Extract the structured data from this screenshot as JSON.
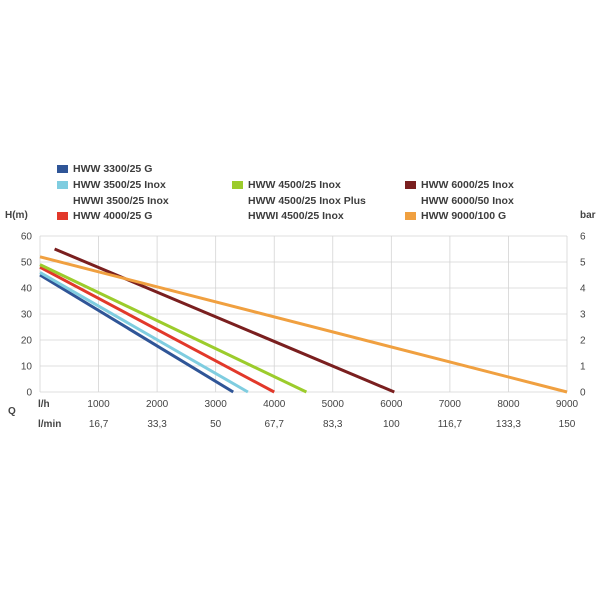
{
  "chart_data": {
    "type": "line",
    "y_left_label": "H(m)",
    "y_right_label": "bar",
    "q_label": "Q",
    "x_unit_label": "l/h",
    "x2_unit_label": "l/min",
    "x_ticks": [
      "1000",
      "2000",
      "3000",
      "4000",
      "5000",
      "6000",
      "7000",
      "8000",
      "9000"
    ],
    "x2_ticks": [
      "16,7",
      "33,3",
      "50",
      "67,7",
      "83,3",
      "100",
      "116,7",
      "133,3",
      "150"
    ],
    "y_left_ticks": [
      "0",
      "10",
      "20",
      "30",
      "40",
      "50",
      "60"
    ],
    "y_right_ticks": [
      "0",
      "1",
      "2",
      "3",
      "4",
      "5",
      "6"
    ],
    "xlim": [
      0,
      9000
    ],
    "ylim": [
      0,
      60
    ],
    "grid": true,
    "legend": [
      {
        "label": "HWW 3300/25 G",
        "color": "#2f5597"
      },
      {
        "label": "HWW 3500/25 Inox",
        "color": "#7fcde0"
      },
      {
        "label": "HWWI 3500/25 Inox",
        "color": ""
      },
      {
        "label": "HWW 4000/25 G",
        "color": "#e2382a"
      },
      {
        "label": "HWW 4500/25 Inox",
        "color": "#9ccc2c"
      },
      {
        "label": "HWW 4500/25 Inox Plus",
        "color": ""
      },
      {
        "label": "HWWI 4500/25 Inox",
        "color": ""
      },
      {
        "label": "HWW 6000/25 Inox",
        "color": "#7a1f1f"
      },
      {
        "label": "HWW 6000/50 Inox",
        "color": ""
      },
      {
        "label": "HWW 9000/100 G",
        "color": "#f0a040"
      }
    ],
    "series": [
      {
        "color": "#2f5597",
        "points": [
          [
            0,
            45
          ],
          [
            3300,
            0
          ]
        ]
      },
      {
        "color": "#7fcde0",
        "points": [
          [
            0,
            46
          ],
          [
            3550,
            0
          ]
        ]
      },
      {
        "color": "#e2382a",
        "points": [
          [
            0,
            48
          ],
          [
            4000,
            0
          ]
        ]
      },
      {
        "color": "#9ccc2c",
        "points": [
          [
            0,
            49
          ],
          [
            4550,
            0
          ]
        ]
      },
      {
        "color": "#7a1f1f",
        "points": [
          [
            250,
            55
          ],
          [
            6050,
            0
          ]
        ]
      },
      {
        "color": "#f0a040",
        "points": [
          [
            0,
            52
          ],
          [
            9000,
            0
          ]
        ]
      }
    ]
  }
}
